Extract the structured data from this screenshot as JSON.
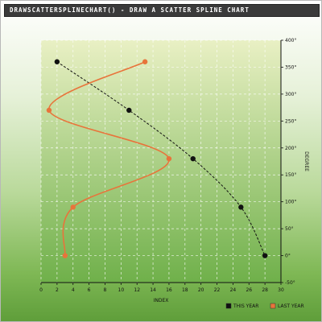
{
  "title": "drawScatterSplineChart() - Draw a scatter spline chart",
  "colors": {
    "plot_top": "#e9f0c4",
    "plot_bottom": "#6fb04a",
    "this_year": "#111111",
    "last_year": "#e8743b",
    "grid": "#ffffff"
  },
  "chart_data": {
    "type": "scatter",
    "xlabel": "INDEX",
    "ylabel": "DEGREE",
    "xlim": [
      0,
      30
    ],
    "ylim": [
      -50,
      400
    ],
    "x_ticks": [
      0,
      2,
      4,
      6,
      8,
      10,
      12,
      14,
      16,
      18,
      20,
      22,
      24,
      26,
      28,
      30
    ],
    "y_ticks": [
      -50,
      0,
      50,
      100,
      150,
      200,
      250,
      300,
      350,
      400
    ],
    "y_tick_labels": [
      "-50°",
      "0°",
      "50°",
      "100°",
      "150°",
      "200°",
      "250°",
      "300°",
      "350°",
      "400°"
    ],
    "grid": true,
    "legend": "bottom-right",
    "series": [
      {
        "name": "This year",
        "line_style": "dashed",
        "points": [
          [
            2,
            360
          ],
          [
            11,
            270
          ],
          [
            19,
            180
          ],
          [
            25,
            90
          ],
          [
            28,
            0
          ]
        ]
      },
      {
        "name": "Last year",
        "line_style": "solid",
        "points": [
          [
            13,
            360
          ],
          [
            1,
            270
          ],
          [
            16,
            180
          ],
          [
            4,
            90
          ],
          [
            3,
            0
          ]
        ]
      }
    ]
  }
}
